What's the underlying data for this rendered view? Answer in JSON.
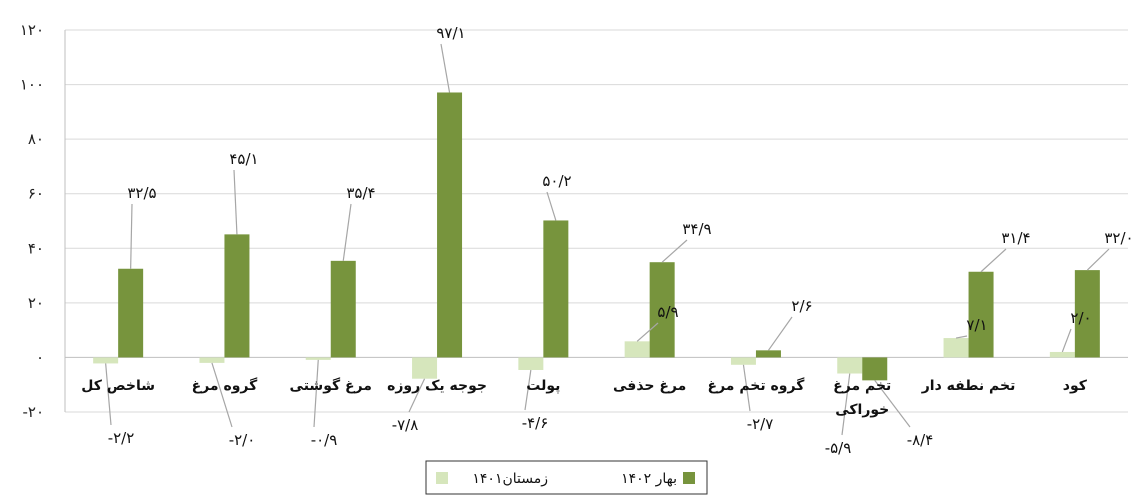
{
  "chart_data": {
    "type": "bar",
    "title": "",
    "xlabel": "",
    "ylabel": "",
    "ylim": [
      -20,
      120
    ],
    "y_ticks": [
      "-۲۰",
      "۰",
      "۲۰",
      "۴۰",
      "۶۰",
      "۸۰",
      "۱۰۰",
      "۱۲۰"
    ],
    "grid": true,
    "legend_position": "bottom",
    "categories": [
      [
        "کود"
      ],
      [
        "تخم نطفه دار"
      ],
      [
        "تخم مرغ",
        "خوراکی"
      ],
      [
        "گروه تخم مرغ"
      ],
      [
        "مرغ حذفی"
      ],
      [
        "پولت"
      ],
      [
        "جوجه یک روزه"
      ],
      [
        "مرغ گوشتی"
      ],
      [
        "گروه مرغ"
      ],
      [
        "شاخص کل"
      ]
    ],
    "series": [
      {
        "name": "زمستان۱۴۰۱",
        "color": "#d6e6bc",
        "values": [
          2.0,
          7.1,
          -5.9,
          -2.7,
          5.9,
          -4.6,
          -7.8,
          -0.9,
          -2.0,
          -2.2
        ],
        "labels": [
          "۲/۰",
          "۷/۱",
          "-۵/۹",
          "-۲/۷",
          "۵/۹",
          "-۴/۶",
          "-۷/۸",
          "-۰/۹",
          "-۲/۰",
          "-۲/۲"
        ]
      },
      {
        "name": "بهار ۱۴۰۲",
        "color": "#77943d",
        "values": [
          32.0,
          31.4,
          -8.4,
          2.6,
          34.9,
          50.2,
          97.1,
          35.4,
          45.1,
          32.5
        ],
        "labels": [
          "۳۲/۰",
          "۳۱/۴",
          "-۸/۴",
          "۲/۶",
          "۳۴/۹",
          "۵۰/۲",
          "۹۷/۱",
          "۳۵/۴",
          "۴۵/۱",
          "۳۲/۵"
        ]
      }
    ]
  }
}
